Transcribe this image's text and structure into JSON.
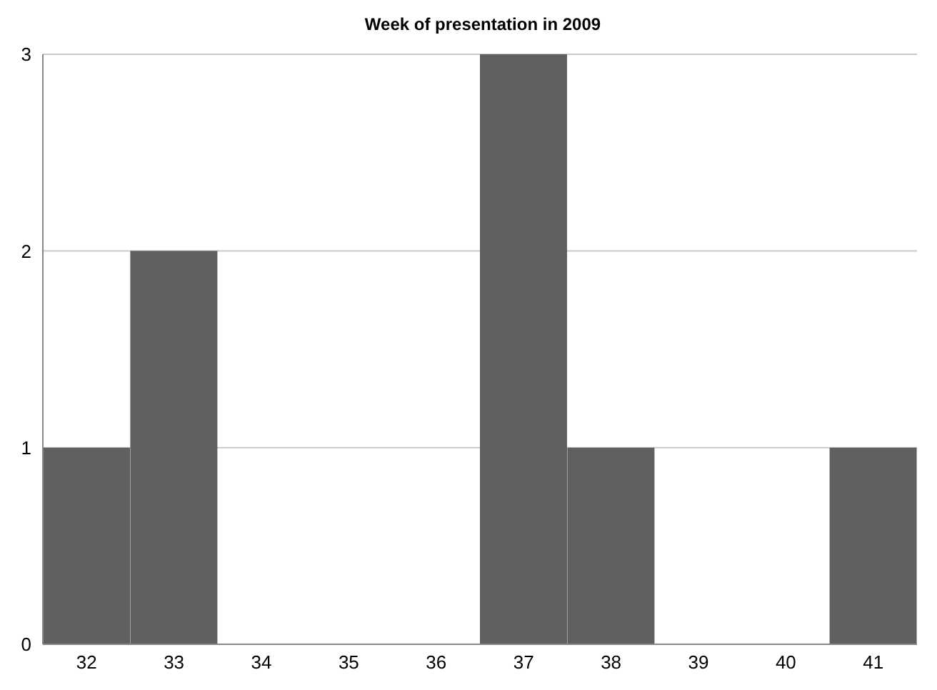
{
  "chart_data": {
    "type": "bar",
    "title": "Week of presentation in 2009",
    "categories": [
      "32",
      "33",
      "34",
      "35",
      "36",
      "37",
      "38",
      "39",
      "40",
      "41"
    ],
    "values": [
      1,
      2,
      0,
      0,
      0,
      3,
      1,
      0,
      0,
      1
    ],
    "color": "#606060",
    "ylim": [
      0,
      3
    ],
    "yticks": [
      0,
      1,
      2,
      3
    ],
    "grid": "y"
  }
}
